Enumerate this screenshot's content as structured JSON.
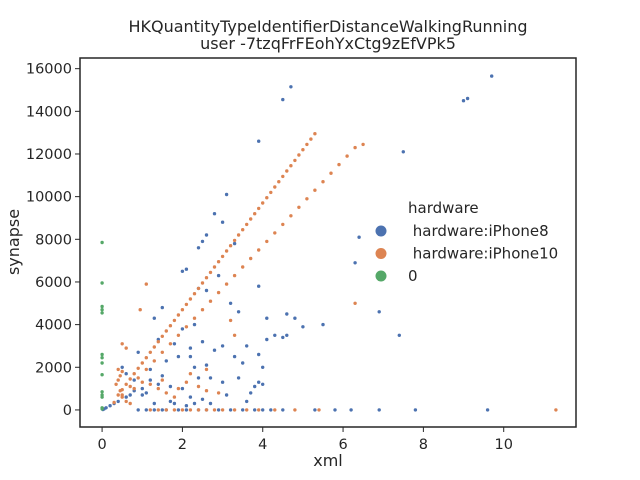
{
  "chart_data": {
    "type": "scatter",
    "title": "HKQuantityTypeIdentifierDistanceWalkingRunning",
    "subtitle": "user -7tzqFrFEohYxCtg9zEfVPk5",
    "xlabel": "xml",
    "ylabel": "synapse",
    "xlim": [
      -0.55,
      11.8
    ],
    "ylim": [
      -800,
      16500
    ],
    "xticks": [
      0,
      2,
      4,
      6,
      8,
      10
    ],
    "yticks": [
      0,
      2000,
      4000,
      6000,
      8000,
      10000,
      12000,
      14000,
      16000
    ],
    "grid": false,
    "legend": {
      "title": "hardware",
      "placement": "center-right",
      "entries": [
        " hardware:iPhone8",
        " hardware:iPhone10",
        "0"
      ]
    },
    "series": [
      {
        "name": " hardware:iPhone8",
        "color": "#4c72b0",
        "points": [
          [
            9.7,
            15650
          ],
          [
            4.7,
            15150
          ],
          [
            4.5,
            14550
          ],
          [
            9.0,
            14500
          ],
          [
            9.1,
            14600
          ],
          [
            3.9,
            12600
          ],
          [
            7.5,
            12100
          ],
          [
            3.1,
            10100
          ],
          [
            2.8,
            9200
          ],
          [
            2.6,
            8200
          ],
          [
            2.5,
            7900
          ],
          [
            2.4,
            7600
          ],
          [
            3.3,
            7800
          ],
          [
            6.4,
            8100
          ],
          [
            2.0,
            6500
          ],
          [
            2.1,
            6600
          ],
          [
            3.9,
            5800
          ],
          [
            2.4,
            5700
          ],
          [
            2.6,
            5600
          ],
          [
            1.5,
            4800
          ],
          [
            1.3,
            4300
          ],
          [
            4.6,
            4500
          ],
          [
            4.8,
            4300
          ],
          [
            4.6,
            3500
          ],
          [
            7.4,
            3500
          ],
          [
            5.5,
            4000
          ],
          [
            5.0,
            3900
          ],
          [
            4.3,
            3500
          ],
          [
            4.5,
            3400
          ],
          [
            4.1,
            3300
          ],
          [
            2.5,
            3200
          ],
          [
            1.8,
            3100
          ],
          [
            2.2,
            2900
          ],
          [
            2.8,
            2800
          ],
          [
            3.0,
            3000
          ],
          [
            3.6,
            3000
          ],
          [
            1.9,
            2500
          ],
          [
            2.3,
            2000
          ],
          [
            3.3,
            2500
          ],
          [
            3.9,
            2600
          ],
          [
            3.5,
            2200
          ],
          [
            4.0,
            2000
          ],
          [
            0.9,
            2700
          ],
          [
            0.5,
            2000
          ],
          [
            0.6,
            1700
          ],
          [
            0.8,
            1400
          ],
          [
            1.2,
            1400
          ],
          [
            1.5,
            1600
          ],
          [
            1.4,
            1200
          ],
          [
            1.7,
            1100
          ],
          [
            2.0,
            1000
          ],
          [
            1.1,
            800
          ],
          [
            1.0,
            700
          ],
          [
            2.2,
            600
          ],
          [
            2.5,
            500
          ],
          [
            2.7,
            1500
          ],
          [
            3.0,
            1300
          ],
          [
            3.4,
            1500
          ],
          [
            3.7,
            800
          ],
          [
            3.8,
            1100
          ],
          [
            3.9,
            1300
          ],
          [
            4.0,
            1200
          ],
          [
            0.3,
            300
          ],
          [
            0.2,
            200
          ],
          [
            0.1,
            100
          ],
          [
            0.05,
            50
          ],
          [
            0.02,
            20
          ],
          [
            0.4,
            400
          ],
          [
            0.6,
            600
          ],
          [
            0.7,
            700
          ],
          [
            1.3,
            300
          ],
          [
            1.8,
            300
          ],
          [
            2.1,
            200
          ],
          [
            2.3,
            300
          ],
          [
            2.7,
            300
          ],
          [
            0.9,
            0
          ],
          [
            1.1,
            0
          ],
          [
            1.3,
            0
          ],
          [
            1.5,
            0
          ],
          [
            1.6,
            0
          ],
          [
            1.9,
            0
          ],
          [
            2.1,
            0
          ],
          [
            2.4,
            0
          ],
          [
            2.6,
            0
          ],
          [
            2.9,
            0
          ],
          [
            3.2,
            0
          ],
          [
            3.5,
            0
          ],
          [
            3.8,
            0
          ],
          [
            4.0,
            0
          ],
          [
            4.2,
            0
          ],
          [
            4.5,
            0
          ],
          [
            5.3,
            0
          ],
          [
            5.8,
            0
          ],
          [
            6.2,
            0
          ],
          [
            6.9,
            0
          ],
          [
            7.8,
            0
          ],
          [
            9.6,
            0
          ],
          [
            6.3,
            6900
          ],
          [
            6.9,
            4600
          ],
          [
            3.0,
            8800
          ],
          [
            2.3,
            4000
          ],
          [
            1.2,
            1900
          ],
          [
            1.6,
            2300
          ],
          [
            1.0,
            1000
          ],
          [
            2.9,
            6300
          ],
          [
            3.2,
            5000
          ],
          [
            3.4,
            4600
          ],
          [
            2.0,
            3800
          ],
          [
            2.2,
            2500
          ],
          [
            2.6,
            2100
          ],
          [
            1.7,
            400
          ],
          [
            3.1,
            700
          ],
          [
            3.6,
            400
          ],
          [
            4.1,
            4300
          ],
          [
            1.4,
            3300
          ],
          [
            0.8,
            900
          ],
          [
            2.4,
            1500
          ]
        ]
      },
      {
        "name": " hardware:iPhone10",
        "color": "#dd8452",
        "points": [
          [
            0.3,
            350
          ],
          [
            0.4,
            700
          ],
          [
            0.5,
            950
          ],
          [
            0.6,
            1200
          ],
          [
            0.7,
            1450
          ],
          [
            0.8,
            1700
          ],
          [
            0.9,
            1950
          ],
          [
            1.0,
            2200
          ],
          [
            1.1,
            2450
          ],
          [
            1.2,
            2700
          ],
          [
            1.3,
            2950
          ],
          [
            1.4,
            3200
          ],
          [
            1.5,
            3450
          ],
          [
            1.6,
            3700
          ],
          [
            1.7,
            3950
          ],
          [
            1.8,
            4200
          ],
          [
            1.9,
            4450
          ],
          [
            2.0,
            4700
          ],
          [
            2.1,
            4950
          ],
          [
            2.2,
            5200
          ],
          [
            2.3,
            5450
          ],
          [
            2.4,
            5700
          ],
          [
            2.5,
            5950
          ],
          [
            2.6,
            6200
          ],
          [
            2.7,
            6450
          ],
          [
            2.8,
            6700
          ],
          [
            2.9,
            6950
          ],
          [
            3.0,
            7200
          ],
          [
            3.1,
            7450
          ],
          [
            3.2,
            7700
          ],
          [
            3.3,
            7950
          ],
          [
            3.4,
            8200
          ],
          [
            3.5,
            8450
          ],
          [
            3.6,
            8700
          ],
          [
            3.7,
            8950
          ],
          [
            3.8,
            9200
          ],
          [
            3.9,
            9450
          ],
          [
            4.0,
            9700
          ],
          [
            4.1,
            9950
          ],
          [
            4.2,
            10200
          ],
          [
            4.3,
            10450
          ],
          [
            4.4,
            10700
          ],
          [
            4.5,
            10950
          ],
          [
            4.6,
            11200
          ],
          [
            4.7,
            11450
          ],
          [
            4.8,
            11700
          ],
          [
            4.9,
            11950
          ],
          [
            5.0,
            12200
          ],
          [
            5.1,
            12450
          ],
          [
            5.2,
            12700
          ],
          [
            5.3,
            12950
          ],
          [
            0.5,
            700
          ],
          [
            0.7,
            1100
          ],
          [
            0.9,
            1500
          ],
          [
            1.1,
            1900
          ],
          [
            1.3,
            2300
          ],
          [
            1.5,
            2700
          ],
          [
            1.7,
            3100
          ],
          [
            1.9,
            3500
          ],
          [
            2.1,
            3900
          ],
          [
            2.3,
            4300
          ],
          [
            2.5,
            4700
          ],
          [
            2.7,
            5100
          ],
          [
            2.9,
            5500
          ],
          [
            3.1,
            5900
          ],
          [
            3.3,
            6300
          ],
          [
            3.5,
            6700
          ],
          [
            3.7,
            7100
          ],
          [
            3.9,
            7500
          ],
          [
            4.1,
            7900
          ],
          [
            4.3,
            8300
          ],
          [
            4.5,
            8700
          ],
          [
            4.7,
            9100
          ],
          [
            4.9,
            9500
          ],
          [
            5.1,
            9900
          ],
          [
            5.3,
            10300
          ],
          [
            5.5,
            10700
          ],
          [
            5.7,
            11100
          ],
          [
            5.9,
            11500
          ],
          [
            6.1,
            11900
          ],
          [
            6.3,
            12300
          ],
          [
            6.5,
            12450
          ],
          [
            1.1,
            5900
          ],
          [
            0.95,
            4700
          ],
          [
            0.5,
            3100
          ],
          [
            0.6,
            2900
          ],
          [
            0.4,
            1900
          ],
          [
            0.5,
            1800
          ],
          [
            0.45,
            1600
          ],
          [
            0.4,
            1400
          ],
          [
            0.35,
            1200
          ],
          [
            0.45,
            900
          ],
          [
            0.5,
            600
          ],
          [
            0.6,
            400
          ],
          [
            0.7,
            300
          ],
          [
            1.2,
            1200
          ],
          [
            1.4,
            1000
          ],
          [
            1.6,
            800
          ],
          [
            1.8,
            600
          ],
          [
            2.1,
            1300
          ],
          [
            2.6,
            900
          ],
          [
            3.2,
            4200
          ],
          [
            3.3,
            3500
          ],
          [
            6.3,
            5000
          ],
          [
            1.2,
            0
          ],
          [
            1.4,
            0
          ],
          [
            1.6,
            0
          ],
          [
            1.8,
            0
          ],
          [
            2.0,
            0
          ],
          [
            2.2,
            0
          ],
          [
            2.4,
            0
          ],
          [
            2.6,
            0
          ],
          [
            2.8,
            0
          ],
          [
            3.0,
            0
          ],
          [
            3.3,
            0
          ],
          [
            3.6,
            0
          ],
          [
            3.9,
            0
          ],
          [
            4.3,
            0
          ],
          [
            4.8,
            0
          ],
          [
            5.4,
            0
          ],
          [
            11.3,
            0
          ],
          [
            0.8,
            1000
          ],
          [
            1.0,
            1300
          ],
          [
            2.2,
            1700
          ],
          [
            2.4,
            1100
          ],
          [
            2.9,
            800
          ],
          [
            1.9,
            1000
          ],
          [
            1.5,
            1400
          ],
          [
            2.6,
            1900
          ]
        ]
      },
      {
        "name": "0",
        "color": "#55a868",
        "points": [
          [
            0,
            7850
          ],
          [
            0,
            5950
          ],
          [
            0,
            4850
          ],
          [
            0,
            4700
          ],
          [
            0,
            4550
          ],
          [
            0,
            2600
          ],
          [
            0,
            2450
          ],
          [
            0,
            2200
          ],
          [
            0,
            1650
          ],
          [
            0,
            850
          ],
          [
            0,
            700
          ],
          [
            0,
            600
          ],
          [
            0,
            100
          ],
          [
            0,
            50
          ]
        ]
      }
    ]
  }
}
